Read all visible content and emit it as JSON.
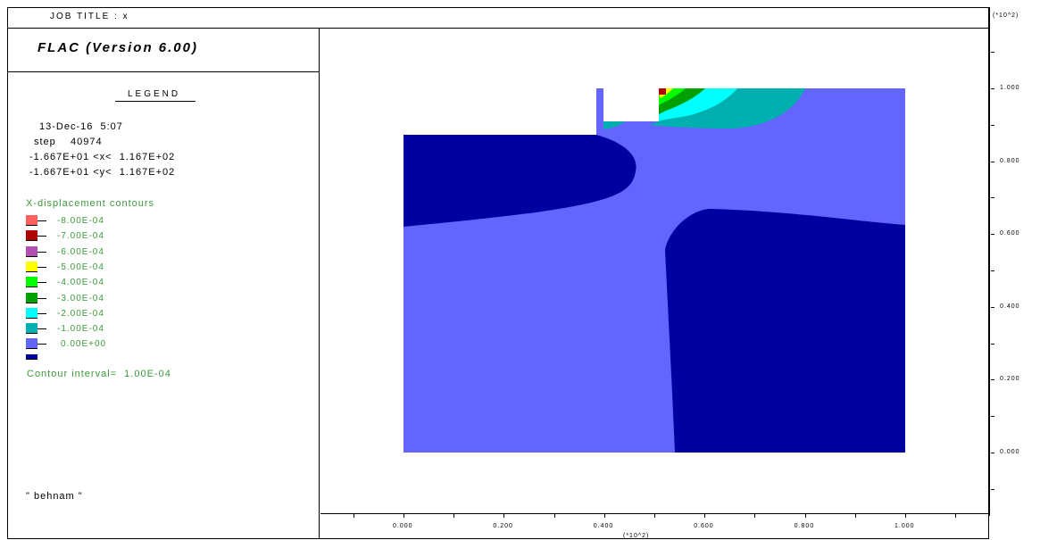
{
  "header": {
    "job_title": "JOB TITLE : x"
  },
  "panel": {
    "program": "FLAC (Version 6.00)",
    "legend_heading": "LEGEND",
    "date": "13-Dec-16  5:07",
    "step": "step    40974",
    "x_range": "-1.667E+01 <x<  1.167E+02",
    "y_range": "-1.667E+01 <y<  1.167E+02",
    "contour_title": "X-displacement contours",
    "levels": [
      {
        "label": "-8.00E-04",
        "color": "#ff6060"
      },
      {
        "label": "-7.00E-04",
        "color": "#b00000"
      },
      {
        "label": "-6.00E-04",
        "color": "#b050b0"
      },
      {
        "label": "-5.00E-04",
        "color": "#ffff00"
      },
      {
        "label": "-4.00E-04",
        "color": "#00ff00"
      },
      {
        "label": "-3.00E-04",
        "color": "#00a000"
      },
      {
        "label": "-2.00E-04",
        "color": "#00ffff"
      },
      {
        "label": "-1.00E-04",
        "color": "#00b0b0"
      },
      {
        "label": "0.00E+00",
        "color": "#6464ff"
      }
    ],
    "extra_swatch_color": "#0000a0",
    "contour_interval": "Contour interval=  1.00E-04",
    "author": "\" behnam \""
  },
  "axes": {
    "x_ticks": [
      "0.000",
      "0.200",
      "0.400",
      "0.600",
      "0.800",
      "1.000"
    ],
    "x_scale": "(*10^2)",
    "y_ticks": [
      "1.000",
      "0.800",
      "0.600",
      "0.400",
      "0.200",
      "0.000"
    ],
    "y_scale": "(*10^2)"
  },
  "colors": {
    "dark_blue": "#0000a0",
    "mid_blue": "#6464ff",
    "teal": "#00b0b0",
    "cyan": "#00ffff",
    "green": "#00a000",
    "bright_green": "#00ff00",
    "yellow": "#ffff00",
    "red": "#b00000"
  }
}
